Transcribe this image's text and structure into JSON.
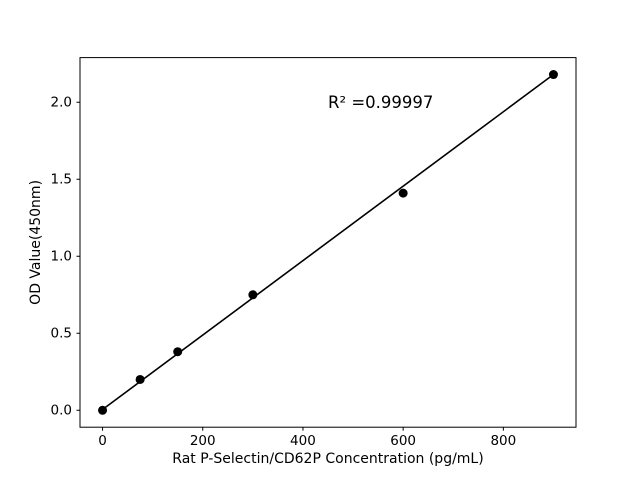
{
  "chart_data": {
    "type": "scatter",
    "title": "",
    "xlabel": "Rat P-Selectin/CD62P Concentration (pg/mL)",
    "ylabel": "OD Value(450nm)",
    "x": [
      0,
      75,
      150,
      300,
      600,
      900
    ],
    "y": [
      0.0,
      0.2,
      0.38,
      0.75,
      1.41,
      2.18
    ],
    "fit_line": {
      "x": [
        0,
        900
      ],
      "y": [
        0.005,
        2.18
      ]
    },
    "annotation": {
      "text": "R² =0.99997",
      "x": 450,
      "y": 2.0
    },
    "xlim": [
      -45,
      945
    ],
    "ylim": [
      -0.11,
      2.29
    ],
    "xticks": {
      "values": [
        0,
        200,
        400,
        600,
        800
      ],
      "labels": [
        "0",
        "200",
        "400",
        "600",
        "800"
      ]
    },
    "yticks": {
      "values": [
        0.0,
        0.5,
        1.0,
        1.5,
        2.0
      ],
      "labels": [
        "0.0",
        "0.5",
        "1.0",
        "1.5",
        "2.0"
      ]
    },
    "grid": false,
    "legend": null,
    "marker_color": "#000000",
    "line_color": "#000000",
    "axis_color": "#000000",
    "background": "#ffffff"
  }
}
